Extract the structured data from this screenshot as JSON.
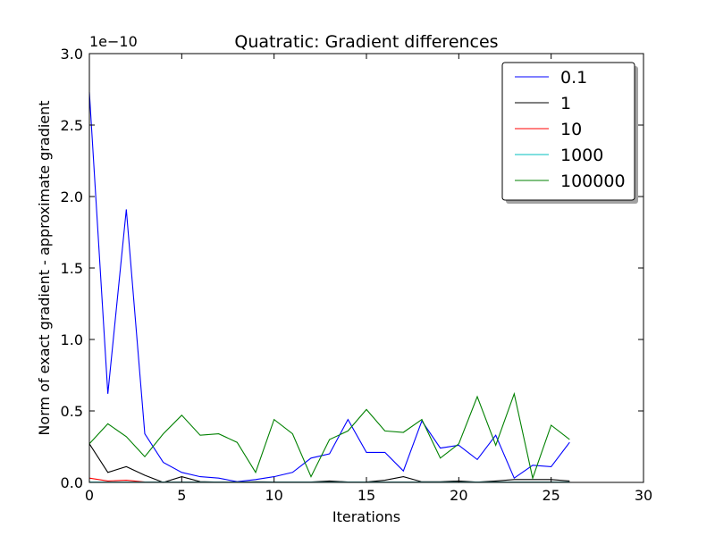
{
  "chart_data": {
    "type": "line",
    "title": "Quatratic: Gradient differences",
    "xlabel": "Iterations",
    "ylabel": "Norm of exact gradient - approximate gradient",
    "y_offset_label": "1e−10",
    "xlim": [
      0,
      30
    ],
    "ylim": [
      0,
      3.0
    ],
    "x_ticks": [
      0,
      5,
      10,
      15,
      20,
      25,
      30
    ],
    "y_ticks": [
      0.0,
      0.5,
      1.0,
      1.5,
      2.0,
      2.5,
      3.0
    ],
    "x_tick_labels": [
      "0",
      "5",
      "10",
      "15",
      "20",
      "25",
      "30"
    ],
    "y_tick_labels": [
      "0.0",
      "0.5",
      "1.0",
      "1.5",
      "2.0",
      "2.5",
      "3.0"
    ],
    "grid": false,
    "legend_position": "top-right",
    "x": [
      0,
      1,
      2,
      3,
      4,
      5,
      6,
      7,
      8,
      9,
      10,
      11,
      12,
      13,
      14,
      15,
      16,
      17,
      18,
      19,
      20,
      21,
      22,
      23,
      24,
      25,
      26
    ],
    "series": [
      {
        "name": "0.1",
        "color": "#0000ff",
        "values": [
          2.73,
          0.62,
          1.91,
          0.34,
          0.14,
          0.07,
          0.04,
          0.03,
          0.005,
          0.02,
          0.04,
          0.07,
          0.17,
          0.2,
          0.44,
          0.21,
          0.21,
          0.08,
          0.43,
          0.24,
          0.26,
          0.16,
          0.33,
          0.03,
          0.12,
          0.11,
          0.28
        ]
      },
      {
        "name": "1",
        "color": "#000000",
        "values": [
          0.27,
          0.07,
          0.11,
          0.05,
          0.0,
          0.04,
          0.005,
          0.002,
          0.002,
          0.004,
          0.003,
          0.002,
          0.003,
          0.01,
          0.003,
          0.003,
          0.015,
          0.04,
          0.004,
          0.004,
          0.01,
          0.002,
          0.01,
          0.02,
          0.02,
          0.02,
          0.01
        ]
      },
      {
        "name": "10",
        "color": "#ff0000",
        "values": [
          0.03,
          0.01,
          0.015,
          0.003,
          0.002,
          0.002,
          0.002,
          0.002,
          0.002,
          0.002,
          0.002,
          0.002,
          0.002,
          0.002,
          0.002,
          0.002,
          0.002,
          0.002,
          0.002,
          0.002,
          0.002,
          0.002,
          0.002,
          0.002,
          0.002,
          0.002,
          0.002
        ]
      },
      {
        "name": "1000",
        "color": "#00bfbf",
        "values": [
          0.002,
          0.002,
          0.002,
          0.002,
          0.002,
          0.002,
          0.002,
          0.002,
          0.002,
          0.002,
          0.002,
          0.002,
          0.002,
          0.002,
          0.002,
          0.002,
          0.002,
          0.002,
          0.002,
          0.002,
          0.002,
          0.002,
          0.002,
          0.002,
          0.002,
          0.002,
          0.002
        ]
      },
      {
        "name": "100000",
        "color": "#008000",
        "values": [
          0.27,
          0.41,
          0.32,
          0.18,
          0.34,
          0.47,
          0.33,
          0.34,
          0.28,
          0.07,
          0.44,
          0.34,
          0.04,
          0.3,
          0.36,
          0.51,
          0.36,
          0.35,
          0.44,
          0.17,
          0.27,
          0.6,
          0.26,
          0.62,
          0.03,
          0.4,
          0.3
        ]
      }
    ]
  }
}
